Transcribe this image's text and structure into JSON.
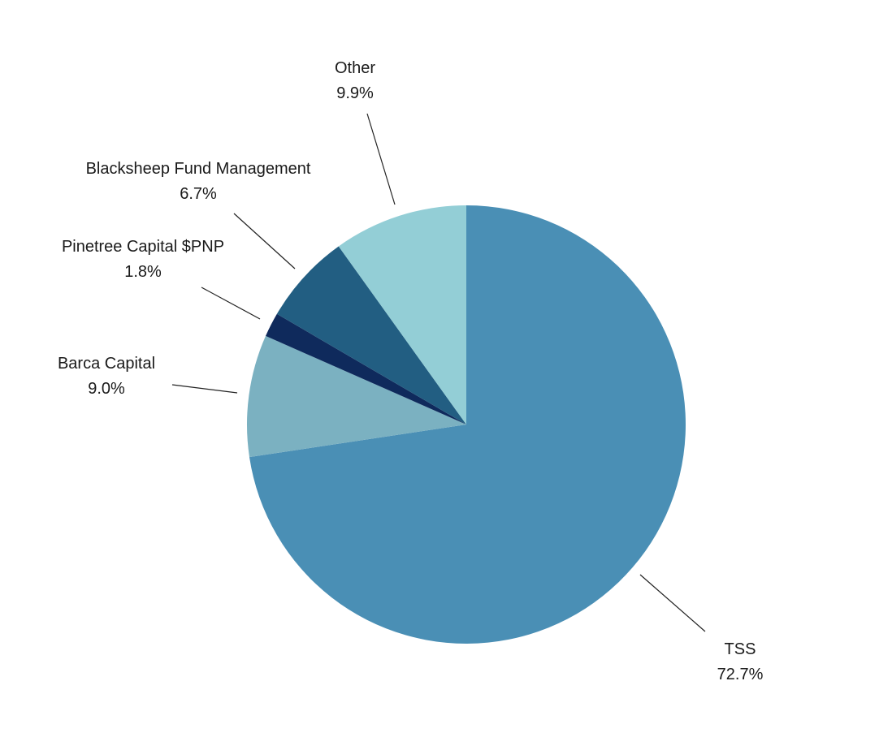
{
  "chart_data": {
    "type": "pie",
    "title": "",
    "slices": [
      {
        "label": "TSS",
        "value_label": "72.7%",
        "value": 72.7,
        "color": "#4a8fb5"
      },
      {
        "label": "Barca Capital",
        "value_label": "9.0%",
        "value": 9.0,
        "color": "#7bb1c1"
      },
      {
        "label": "Pinetree Capital $PNP",
        "value_label": "1.8%",
        "value": 1.8,
        "color": "#0f2a5c"
      },
      {
        "label": "Blacksheep Fund Management",
        "value_label": "6.7%",
        "value": 6.7,
        "color": "#225e82"
      },
      {
        "label": "Other",
        "value_label": "9.9%",
        "value": 9.9,
        "color": "#93ced6"
      }
    ],
    "start_angle": "12 o'clock",
    "direction": "clockwise",
    "legend": "none (labels with leader lines)"
  }
}
